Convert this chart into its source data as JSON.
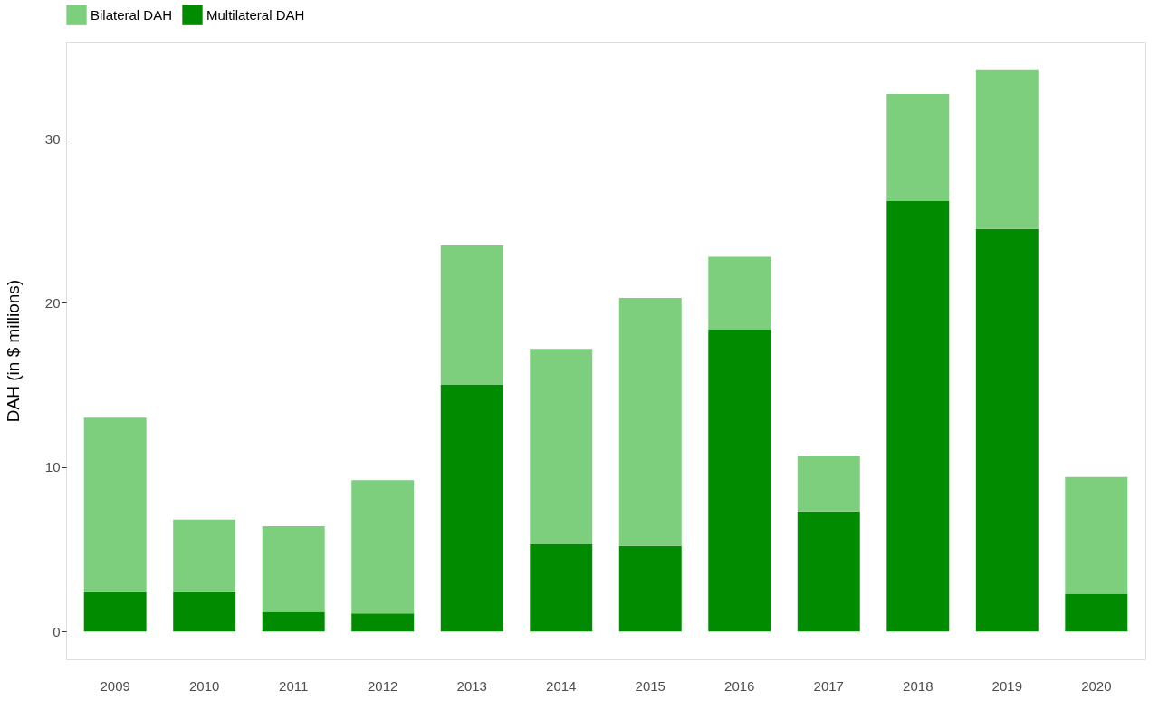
{
  "chart_data": {
    "type": "bar",
    "stacked": true,
    "ylabel": "DAH (in $ millions)",
    "categories": [
      "2009",
      "2010",
      "2011",
      "2012",
      "2013",
      "2014",
      "2015",
      "2016",
      "2017",
      "2018",
      "2019",
      "2020"
    ],
    "series": [
      {
        "name": "Multilateral DAH",
        "color": "#008b00",
        "values": [
          2.4,
          2.4,
          1.2,
          1.1,
          15.0,
          5.3,
          5.2,
          18.4,
          7.3,
          26.2,
          24.5,
          2.3
        ]
      },
      {
        "name": "Bilateral DAH",
        "color": "#7dce7d",
        "values": [
          10.6,
          4.4,
          5.2,
          8.1,
          8.5,
          11.9,
          15.1,
          4.4,
          3.4,
          6.5,
          9.7,
          7.1
        ]
      }
    ],
    "ylim": [
      -1.7,
      35.9
    ],
    "yticks": [
      0,
      10,
      20,
      30
    ],
    "grid": false,
    "legend": "top"
  }
}
